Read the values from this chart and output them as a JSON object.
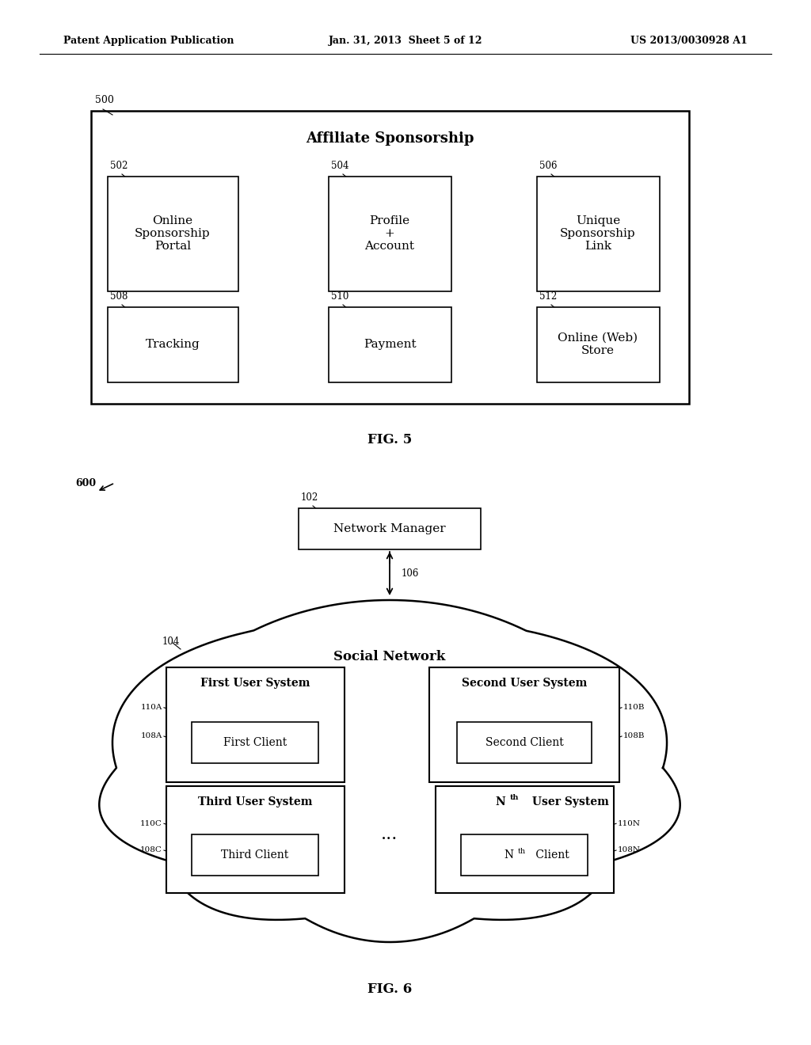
{
  "bg_color": "#ffffff",
  "header_left": "Patent Application Publication",
  "header_center": "Jan. 31, 2013  Sheet 5 of 12",
  "header_right": "US 2013/0030928 A1",
  "fig5_label": "FIG. 5",
  "fig6_label": "FIG. 6",
  "fig5_ref": "500",
  "fig5_title": "Affiliate Sponsorship",
  "fig6_ref": "600",
  "fig6_nm_ref": "102",
  "fig6_nm_label": "Network Manager",
  "fig6_arrow_ref": "106",
  "fig6_cloud_ref": "104",
  "fig6_cloud_label": "Social Network"
}
